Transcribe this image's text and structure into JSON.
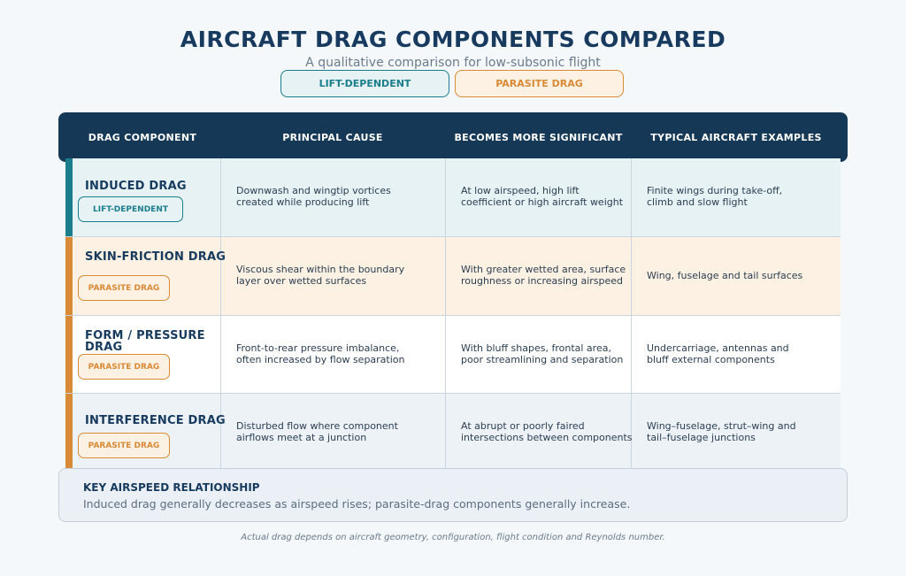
{
  "title": "AIRCRAFT DRAG COMPONENTS COMPARED",
  "subtitle": "A qualitative comparison for low-subsonic flight",
  "legend": {
    "lift_dependent": "LIFT-DEPENDENT",
    "parasite": "PARASITE DRAG"
  },
  "colors": {
    "lift_dependent": "#1a7d8c",
    "parasite": "#d98a36",
    "header_bg": "#143856"
  },
  "headers": [
    "DRAG COMPONENT",
    "PRINCIPAL CAUSE",
    "BECOMES MORE SIGNIFICANT",
    "TYPICAL AIRCRAFT EXAMPLES"
  ],
  "rows": [
    {
      "name": "INDUCED DRAG",
      "badge": "LIFT-DEPENDENT",
      "cause": "Downwash and wingtip vortices\ncreated while producing lift",
      "significant": "At low airspeed, high lift\ncoefficient or high aircraft weight",
      "examples": "Finite wings during take-off,\nclimb and slow flight"
    },
    {
      "name": "SKIN-FRICTION DRAG",
      "badge": "PARASITE DRAG",
      "cause": "Viscous shear within the boundary\nlayer over wetted surfaces",
      "significant": "With greater wetted area, surface\nroughness or increasing airspeed",
      "examples": "Wing, fuselage and tail surfaces"
    },
    {
      "name": "FORM / PRESSURE DRAG",
      "badge": "PARASITE DRAG",
      "cause": "Front-to-rear pressure imbalance,\noften increased by flow separation",
      "significant": "With bluff shapes, frontal area,\npoor streamlining and separation",
      "examples": "Undercarriage, antennas and\nbluff external components"
    },
    {
      "name": "INTERFERENCE DRAG",
      "badge": "PARASITE DRAG",
      "cause": "Disturbed flow where component\nairflows meet at a junction",
      "significant": "At abrupt or poorly faired\nintersections between components",
      "examples": "Wing–fuselage, strut–wing and\ntail–fuselage junctions"
    }
  ],
  "key": {
    "title": "KEY AIRSPEED RELATIONSHIP",
    "text": "Induced drag generally decreases as airspeed rises; parasite-drag components generally increase."
  },
  "footnote": "Actual drag depends on aircraft geometry, configuration, flight condition and Reynolds number."
}
